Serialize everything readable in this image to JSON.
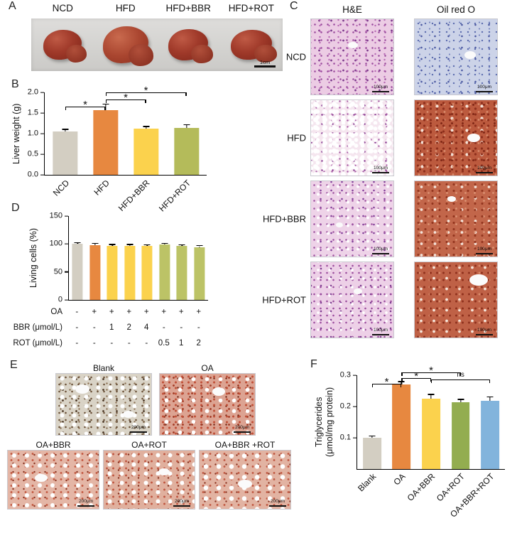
{
  "figure": {
    "panels": {
      "A": {
        "label": "A",
        "groups": [
          "NCD",
          "HFD",
          "HFD+BBR",
          "HFD+ROT"
        ],
        "scale_bar": "1cm"
      },
      "B": {
        "label": "B"
      },
      "C": {
        "label": "C",
        "column_headers": [
          "H&E",
          "Oil red O"
        ],
        "row_labels": [
          "NCD",
          "HFD",
          "HFD+BBR",
          "HFD+ROT"
        ],
        "scale_bar": "100μm"
      },
      "D": {
        "label": "D"
      },
      "E": {
        "label": "E",
        "image_labels": [
          "Blank",
          "OA",
          "OA+BBR",
          "OA+ROT",
          "OA+BBR +ROT"
        ],
        "scale_bar": "200μm"
      },
      "F": {
        "label": "F"
      }
    }
  },
  "chart_data": [
    {
      "id": "liver_weight",
      "panel": "B",
      "type": "bar",
      "ylabel": "Liver weight (g)",
      "categories": [
        "NCD",
        "HFD",
        "HFD+BBR",
        "HFD+ROT"
      ],
      "values": [
        1.05,
        1.57,
        1.12,
        1.13
      ],
      "errors": [
        0.04,
        0.13,
        0.04,
        0.08
      ],
      "ylim": [
        0,
        2.0
      ],
      "yticks": [
        "0.0",
        "0.5",
        "1.0",
        "1.5",
        "2.0"
      ],
      "grid": false,
      "colors": [
        "#d3cec2",
        "#e78840",
        "#fbd24d",
        "#b4bb5a"
      ],
      "significance": [
        {
          "from": 0,
          "to": 1,
          "label": "*",
          "level": 1
        },
        {
          "from": 1,
          "to": 2,
          "label": "*",
          "level": 1.5
        },
        {
          "from": 1,
          "to": 3,
          "label": "*",
          "level": 2
        }
      ],
      "sig_base": 0,
      "sig_step": 20
    },
    {
      "id": "living_cells",
      "panel": "D",
      "type": "bar",
      "ylabel": "Living cells (%)",
      "values": [
        100,
        98,
        97,
        97,
        96,
        99,
        96,
        94
      ],
      "errors": [
        1.5,
        2,
        1.5,
        1.5,
        2,
        1.5,
        1.5,
        2
      ],
      "ylim": [
        0,
        150
      ],
      "yticks": [
        "0",
        "50",
        "100",
        "150"
      ],
      "grid": false,
      "colors": [
        "#d3cec2",
        "#e78840",
        "#fbd24d",
        "#fbd24d",
        "#fbd24d",
        "#bcc366",
        "#bcc366",
        "#bcc366"
      ],
      "treatments": {
        "rows": [
          {
            "label": "OA",
            "values": [
              "-",
              "+",
              "+",
              "+",
              "+",
              "+",
              "+",
              "+"
            ]
          },
          {
            "label": "BBR (μmol/L)",
            "values": [
              "-",
              "-",
              "1",
              "2",
              "4",
              "-",
              "-",
              "-"
            ]
          },
          {
            "label": "ROT (μmol/L)",
            "values": [
              "-",
              "-",
              "-",
              "-",
              "-",
              "0.5",
              "1",
              "2"
            ]
          }
        ]
      }
    },
    {
      "id": "triglycerides",
      "panel": "F",
      "type": "bar",
      "ylabel": "Triglycerides\n(μmol/mg protein)",
      "categories": [
        "Blank",
        "OA",
        "OA+BBR",
        "OA+ROT",
        "OA+BBR+ROT"
      ],
      "values": [
        0.1,
        0.27,
        0.225,
        0.213,
        0.218
      ],
      "errors": [
        0.005,
        0.008,
        0.012,
        0.008,
        0.012
      ],
      "ylim": [
        0,
        0.3
      ],
      "yticks": [
        "0.1",
        "0.2",
        "0.3"
      ],
      "grid": false,
      "colors": [
        "#d3cec2",
        "#e78840",
        "#fbd24d",
        "#93ad50",
        "#82b4dc"
      ],
      "significance": [
        {
          "from": 0,
          "to": 1,
          "label": "*",
          "level": 1
        },
        {
          "from": 1,
          "to": 2,
          "label": "*",
          "level": 1.5
        },
        {
          "from": 1,
          "to": 3,
          "label": "*",
          "level": 2
        },
        {
          "from": 2,
          "to": 4,
          "label": "ns",
          "level": 1.35
        }
      ],
      "sig_base": -4,
      "sig_step": 16
    }
  ]
}
